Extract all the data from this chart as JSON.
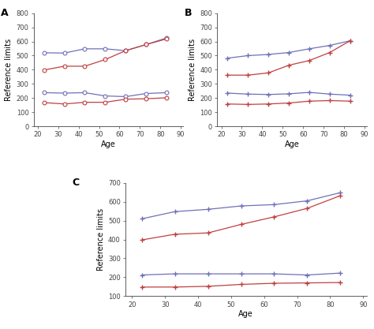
{
  "age_A": [
    23,
    33,
    43,
    53,
    63,
    73,
    83
  ],
  "A_blue_upper": [
    520,
    518,
    548,
    548,
    535,
    578,
    625
  ],
  "A_blue_lower": [
    238,
    235,
    238,
    215,
    210,
    232,
    238
  ],
  "A_red_upper": [
    398,
    425,
    425,
    472,
    535,
    578,
    618
  ],
  "A_red_lower": [
    168,
    158,
    170,
    170,
    192,
    195,
    202
  ],
  "age_B": [
    23,
    33,
    43,
    53,
    63,
    73,
    83
  ],
  "B_blue_upper": [
    482,
    500,
    508,
    522,
    548,
    572,
    605
  ],
  "B_blue_lower": [
    235,
    228,
    225,
    230,
    240,
    228,
    220
  ],
  "B_red_upper": [
    362,
    362,
    378,
    432,
    465,
    522,
    605
  ],
  "B_red_lower": [
    158,
    155,
    158,
    165,
    178,
    182,
    178
  ],
  "age_C": [
    23,
    33,
    43,
    53,
    63,
    73,
    83
  ],
  "C_blue_upper": [
    510,
    548,
    560,
    578,
    585,
    605,
    648
  ],
  "C_blue_lower": [
    212,
    218,
    218,
    218,
    218,
    212,
    222
  ],
  "C_red_upper": [
    398,
    428,
    435,
    480,
    520,
    565,
    632
  ],
  "C_red_lower": [
    148,
    148,
    152,
    162,
    168,
    170,
    172
  ],
  "blue_color": "#7070b8",
  "red_color": "#c04040",
  "ylabel": "Reference limits",
  "xlabel": "Age",
  "ylim_AB": [
    0,
    800
  ],
  "ylim_C": [
    100,
    700
  ],
  "yticks_AB": [
    0,
    100,
    200,
    300,
    400,
    500,
    600,
    700,
    800
  ],
  "yticks_C": [
    100,
    200,
    300,
    400,
    500,
    600,
    700
  ],
  "xticks": [
    20,
    30,
    40,
    50,
    60,
    70,
    80,
    90
  ]
}
